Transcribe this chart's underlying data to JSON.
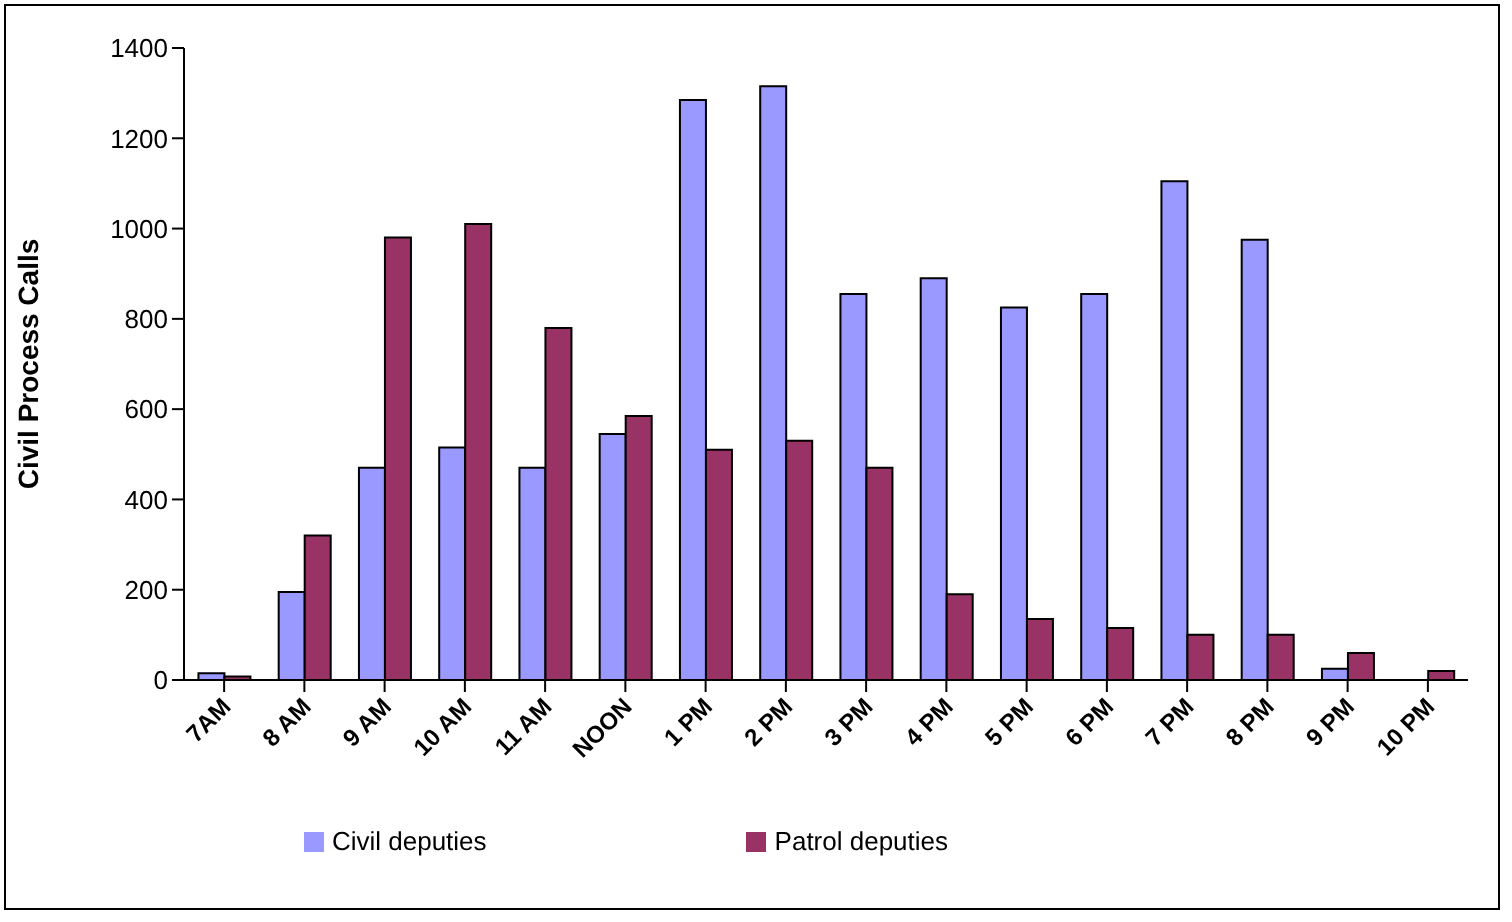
{
  "chart_data": {
    "type": "bar",
    "ylabel": "Civil Process Calls",
    "categories": [
      "7AM",
      "8 AM",
      "9 AM",
      "10 AM",
      "11 AM",
      "NOON",
      "1 PM",
      "2 PM",
      "3 PM",
      "4 PM",
      "5 PM",
      "6 PM",
      "7 PM",
      "8 PM",
      "9 PM",
      "10 PM"
    ],
    "series": [
      {
        "name": "Civil deputies",
        "color": "#9999ff",
        "values": [
          15,
          195,
          470,
          515,
          470,
          545,
          1285,
          1315,
          855,
          890,
          825,
          855,
          1105,
          975,
          25,
          0
        ]
      },
      {
        "name": "Patrol deputies",
        "color": "#993366",
        "values": [
          8,
          320,
          980,
          1010,
          780,
          585,
          510,
          530,
          470,
          190,
          135,
          115,
          100,
          100,
          60,
          20
        ]
      }
    ],
    "ylim": [
      0,
      1400
    ],
    "yticks": [
      0,
      200,
      400,
      600,
      800,
      1000,
      1200,
      1400
    ],
    "grid": false,
    "legend": "bottom"
  }
}
